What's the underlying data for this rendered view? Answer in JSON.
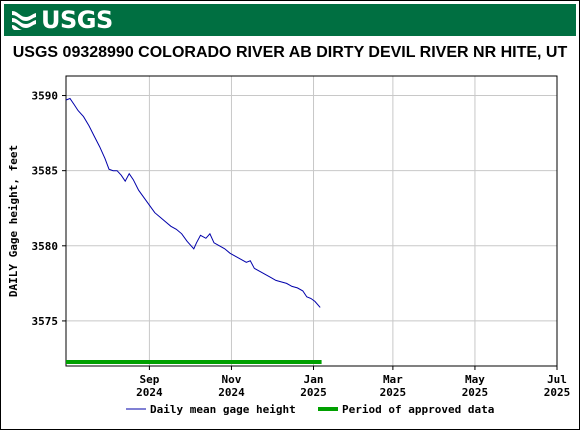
{
  "header": {
    "logo_text": "USGS",
    "title": "USGS 09328990 COLORADO RIVER AB DIRTY DEVIL RIVER NR HITE, UT"
  },
  "colors": {
    "banner": "#006f41",
    "series_line": "#0000aa",
    "approved_bar": "#00a000",
    "grid": "#c8c8c8"
  },
  "chart_data": {
    "type": "line",
    "title": "USGS 09328990 COLORADO RIVER AB DIRTY DEVIL RIVER NR HITE, UT",
    "ylabel": "DAILY Gage height, feet",
    "xlabel": "",
    "xlim": [
      "2024-07-01",
      "2025-07-01"
    ],
    "ylim": [
      3572,
      3591.3
    ],
    "yticks": [
      3575,
      3580,
      3585,
      3590
    ],
    "ytick_labels": [
      "3575",
      "3580",
      "3585",
      "3590"
    ],
    "xticks": [
      {
        "date": "2024-09-01",
        "line1": "Sep",
        "line2": "2024"
      },
      {
        "date": "2024-11-01",
        "line1": "Nov",
        "line2": "2024"
      },
      {
        "date": "2025-01-01",
        "line1": "Jan",
        "line2": "2025"
      },
      {
        "date": "2025-03-01",
        "line1": "Mar",
        "line2": "2025"
      },
      {
        "date": "2025-05-01",
        "line1": "May",
        "line2": "2025"
      },
      {
        "date": "2025-07-01",
        "line1": "Jul",
        "line2": "2025"
      }
    ],
    "series": [
      {
        "name": "Daily mean gage height",
        "points": [
          [
            "2024-07-01",
            3589.7
          ],
          [
            "2024-07-04",
            3589.8
          ],
          [
            "2024-07-07",
            3589.4
          ],
          [
            "2024-07-10",
            3589.0
          ],
          [
            "2024-07-14",
            3588.6
          ],
          [
            "2024-07-18",
            3588.0
          ],
          [
            "2024-07-22",
            3587.3
          ],
          [
            "2024-07-26",
            3586.6
          ],
          [
            "2024-07-30",
            3585.8
          ],
          [
            "2024-08-02",
            3585.1
          ],
          [
            "2024-08-05",
            3585.0
          ],
          [
            "2024-08-08",
            3585.0
          ],
          [
            "2024-08-11",
            3584.7
          ],
          [
            "2024-08-14",
            3584.3
          ],
          [
            "2024-08-17",
            3584.8
          ],
          [
            "2024-08-20",
            3584.4
          ],
          [
            "2024-08-24",
            3583.7
          ],
          [
            "2024-08-28",
            3583.2
          ],
          [
            "2024-09-01",
            3582.7
          ],
          [
            "2024-09-05",
            3582.2
          ],
          [
            "2024-09-09",
            3581.9
          ],
          [
            "2024-09-13",
            3581.6
          ],
          [
            "2024-09-17",
            3581.3
          ],
          [
            "2024-09-21",
            3581.1
          ],
          [
            "2024-09-25",
            3580.8
          ],
          [
            "2024-09-29",
            3580.3
          ],
          [
            "2024-10-02",
            3580.0
          ],
          [
            "2024-10-04",
            3579.8
          ],
          [
            "2024-10-06",
            3580.2
          ],
          [
            "2024-10-09",
            3580.7
          ],
          [
            "2024-10-13",
            3580.5
          ],
          [
            "2024-10-16",
            3580.8
          ],
          [
            "2024-10-19",
            3580.2
          ],
          [
            "2024-10-23",
            3580.0
          ],
          [
            "2024-10-27",
            3579.8
          ],
          [
            "2024-10-31",
            3579.5
          ],
          [
            "2024-11-04",
            3579.3
          ],
          [
            "2024-11-08",
            3579.1
          ],
          [
            "2024-11-12",
            3578.9
          ],
          [
            "2024-11-15",
            3579.0
          ],
          [
            "2024-11-18",
            3578.5
          ],
          [
            "2024-11-22",
            3578.3
          ],
          [
            "2024-11-26",
            3578.1
          ],
          [
            "2024-11-30",
            3577.9
          ],
          [
            "2024-12-04",
            3577.7
          ],
          [
            "2024-12-08",
            3577.6
          ],
          [
            "2024-12-12",
            3577.5
          ],
          [
            "2024-12-16",
            3577.3
          ],
          [
            "2024-12-20",
            3577.2
          ],
          [
            "2024-12-24",
            3577.0
          ],
          [
            "2024-12-27",
            3576.6
          ],
          [
            "2024-12-30",
            3576.5
          ],
          [
            "2025-01-02",
            3576.3
          ],
          [
            "2025-01-06",
            3575.9
          ]
        ]
      },
      {
        "name": "Period of approved data",
        "range": [
          "2024-07-01",
          "2025-01-07"
        ]
      }
    ],
    "grid": true,
    "legend": "bottom"
  }
}
